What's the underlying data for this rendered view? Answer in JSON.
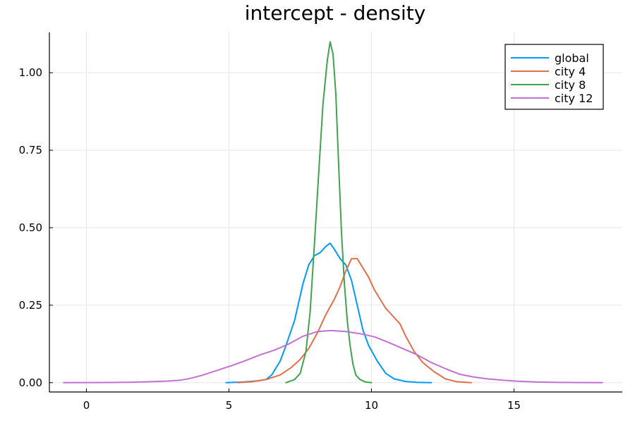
{
  "chart_data": {
    "type": "line",
    "title": "intercept - density",
    "xlabel": "",
    "ylabel": "",
    "xlim": [
      -1.3,
      18.8
    ],
    "ylim": [
      -0.03,
      1.13
    ],
    "xticks": [
      0,
      5,
      10,
      15
    ],
    "xtick_labels": [
      "0",
      "5",
      "10",
      "15"
    ],
    "yticks": [
      0,
      0.25,
      0.5,
      0.75,
      1.0
    ],
    "ytick_labels": [
      "0.00",
      "0.25",
      "0.50",
      "0.75",
      "1.00"
    ],
    "grid": true,
    "legend_position": "top-right",
    "series": [
      {
        "name": "global",
        "color": "#009AFA",
        "x": [
          4.9,
          5.5,
          6.0,
          6.3,
          6.5,
          6.8,
          7.0,
          7.3,
          7.6,
          7.8,
          8.0,
          8.2,
          8.4,
          8.55,
          8.7,
          8.9,
          9.1,
          9.3,
          9.5,
          9.7,
          9.9,
          10.2,
          10.5,
          10.8,
          11.2,
          11.6,
          12.1
        ],
        "y": [
          0.0,
          0.002,
          0.006,
          0.01,
          0.025,
          0.07,
          0.12,
          0.2,
          0.32,
          0.38,
          0.41,
          0.42,
          0.44,
          0.45,
          0.43,
          0.4,
          0.38,
          0.33,
          0.25,
          0.17,
          0.12,
          0.07,
          0.03,
          0.012,
          0.004,
          0.001,
          0.0
        ]
      },
      {
        "name": "city 4",
        "color": "#E36F47",
        "x": [
          5.3,
          5.8,
          6.3,
          6.8,
          7.2,
          7.5,
          7.8,
          8.1,
          8.4,
          8.7,
          8.9,
          9.1,
          9.3,
          9.5,
          9.7,
          9.9,
          10.1,
          10.3,
          10.5,
          10.8,
          11.0,
          11.2,
          11.5,
          11.8,
          12.2,
          12.6,
          13.0,
          13.5
        ],
        "y": [
          0.0,
          0.003,
          0.01,
          0.025,
          0.05,
          0.075,
          0.11,
          0.16,
          0.22,
          0.27,
          0.31,
          0.36,
          0.4,
          0.4,
          0.37,
          0.34,
          0.3,
          0.27,
          0.24,
          0.21,
          0.19,
          0.15,
          0.1,
          0.065,
          0.035,
          0.012,
          0.003,
          0.0
        ]
      },
      {
        "name": "city 8",
        "color": "#3EA44E",
        "x": [
          7.0,
          7.3,
          7.5,
          7.7,
          7.85,
          8.0,
          8.15,
          8.3,
          8.45,
          8.55,
          8.65,
          8.75,
          8.85,
          8.95,
          9.05,
          9.15,
          9.25,
          9.35,
          9.45,
          9.6,
          9.8,
          10.0
        ],
        "y": [
          0.0,
          0.01,
          0.03,
          0.1,
          0.23,
          0.45,
          0.68,
          0.9,
          1.04,
          1.1,
          1.06,
          0.93,
          0.7,
          0.48,
          0.32,
          0.2,
          0.12,
          0.06,
          0.025,
          0.01,
          0.002,
          0.0
        ]
      },
      {
        "name": "city 12",
        "color": "#C271D2",
        "x": [
          -0.8,
          0.5,
          1.5,
          2.2,
          2.8,
          3.3,
          3.7,
          4.1,
          4.6,
          5.1,
          5.6,
          6.1,
          6.6,
          7.1,
          7.6,
          8.1,
          8.6,
          9.1,
          9.6,
          10.1,
          10.6,
          11.1,
          11.6,
          12.1,
          12.6,
          13.1,
          13.6,
          14.1,
          14.6,
          15.1,
          15.8,
          16.5,
          17.3,
          18.1
        ],
        "y": [
          0.0,
          0.0005,
          0.0015,
          0.003,
          0.005,
          0.008,
          0.015,
          0.025,
          0.04,
          0.055,
          0.072,
          0.09,
          0.105,
          0.125,
          0.15,
          0.165,
          0.168,
          0.165,
          0.158,
          0.148,
          0.13,
          0.11,
          0.09,
          0.065,
          0.045,
          0.027,
          0.018,
          0.012,
          0.008,
          0.005,
          0.002,
          0.001,
          0.0005,
          0.0
        ]
      }
    ]
  }
}
